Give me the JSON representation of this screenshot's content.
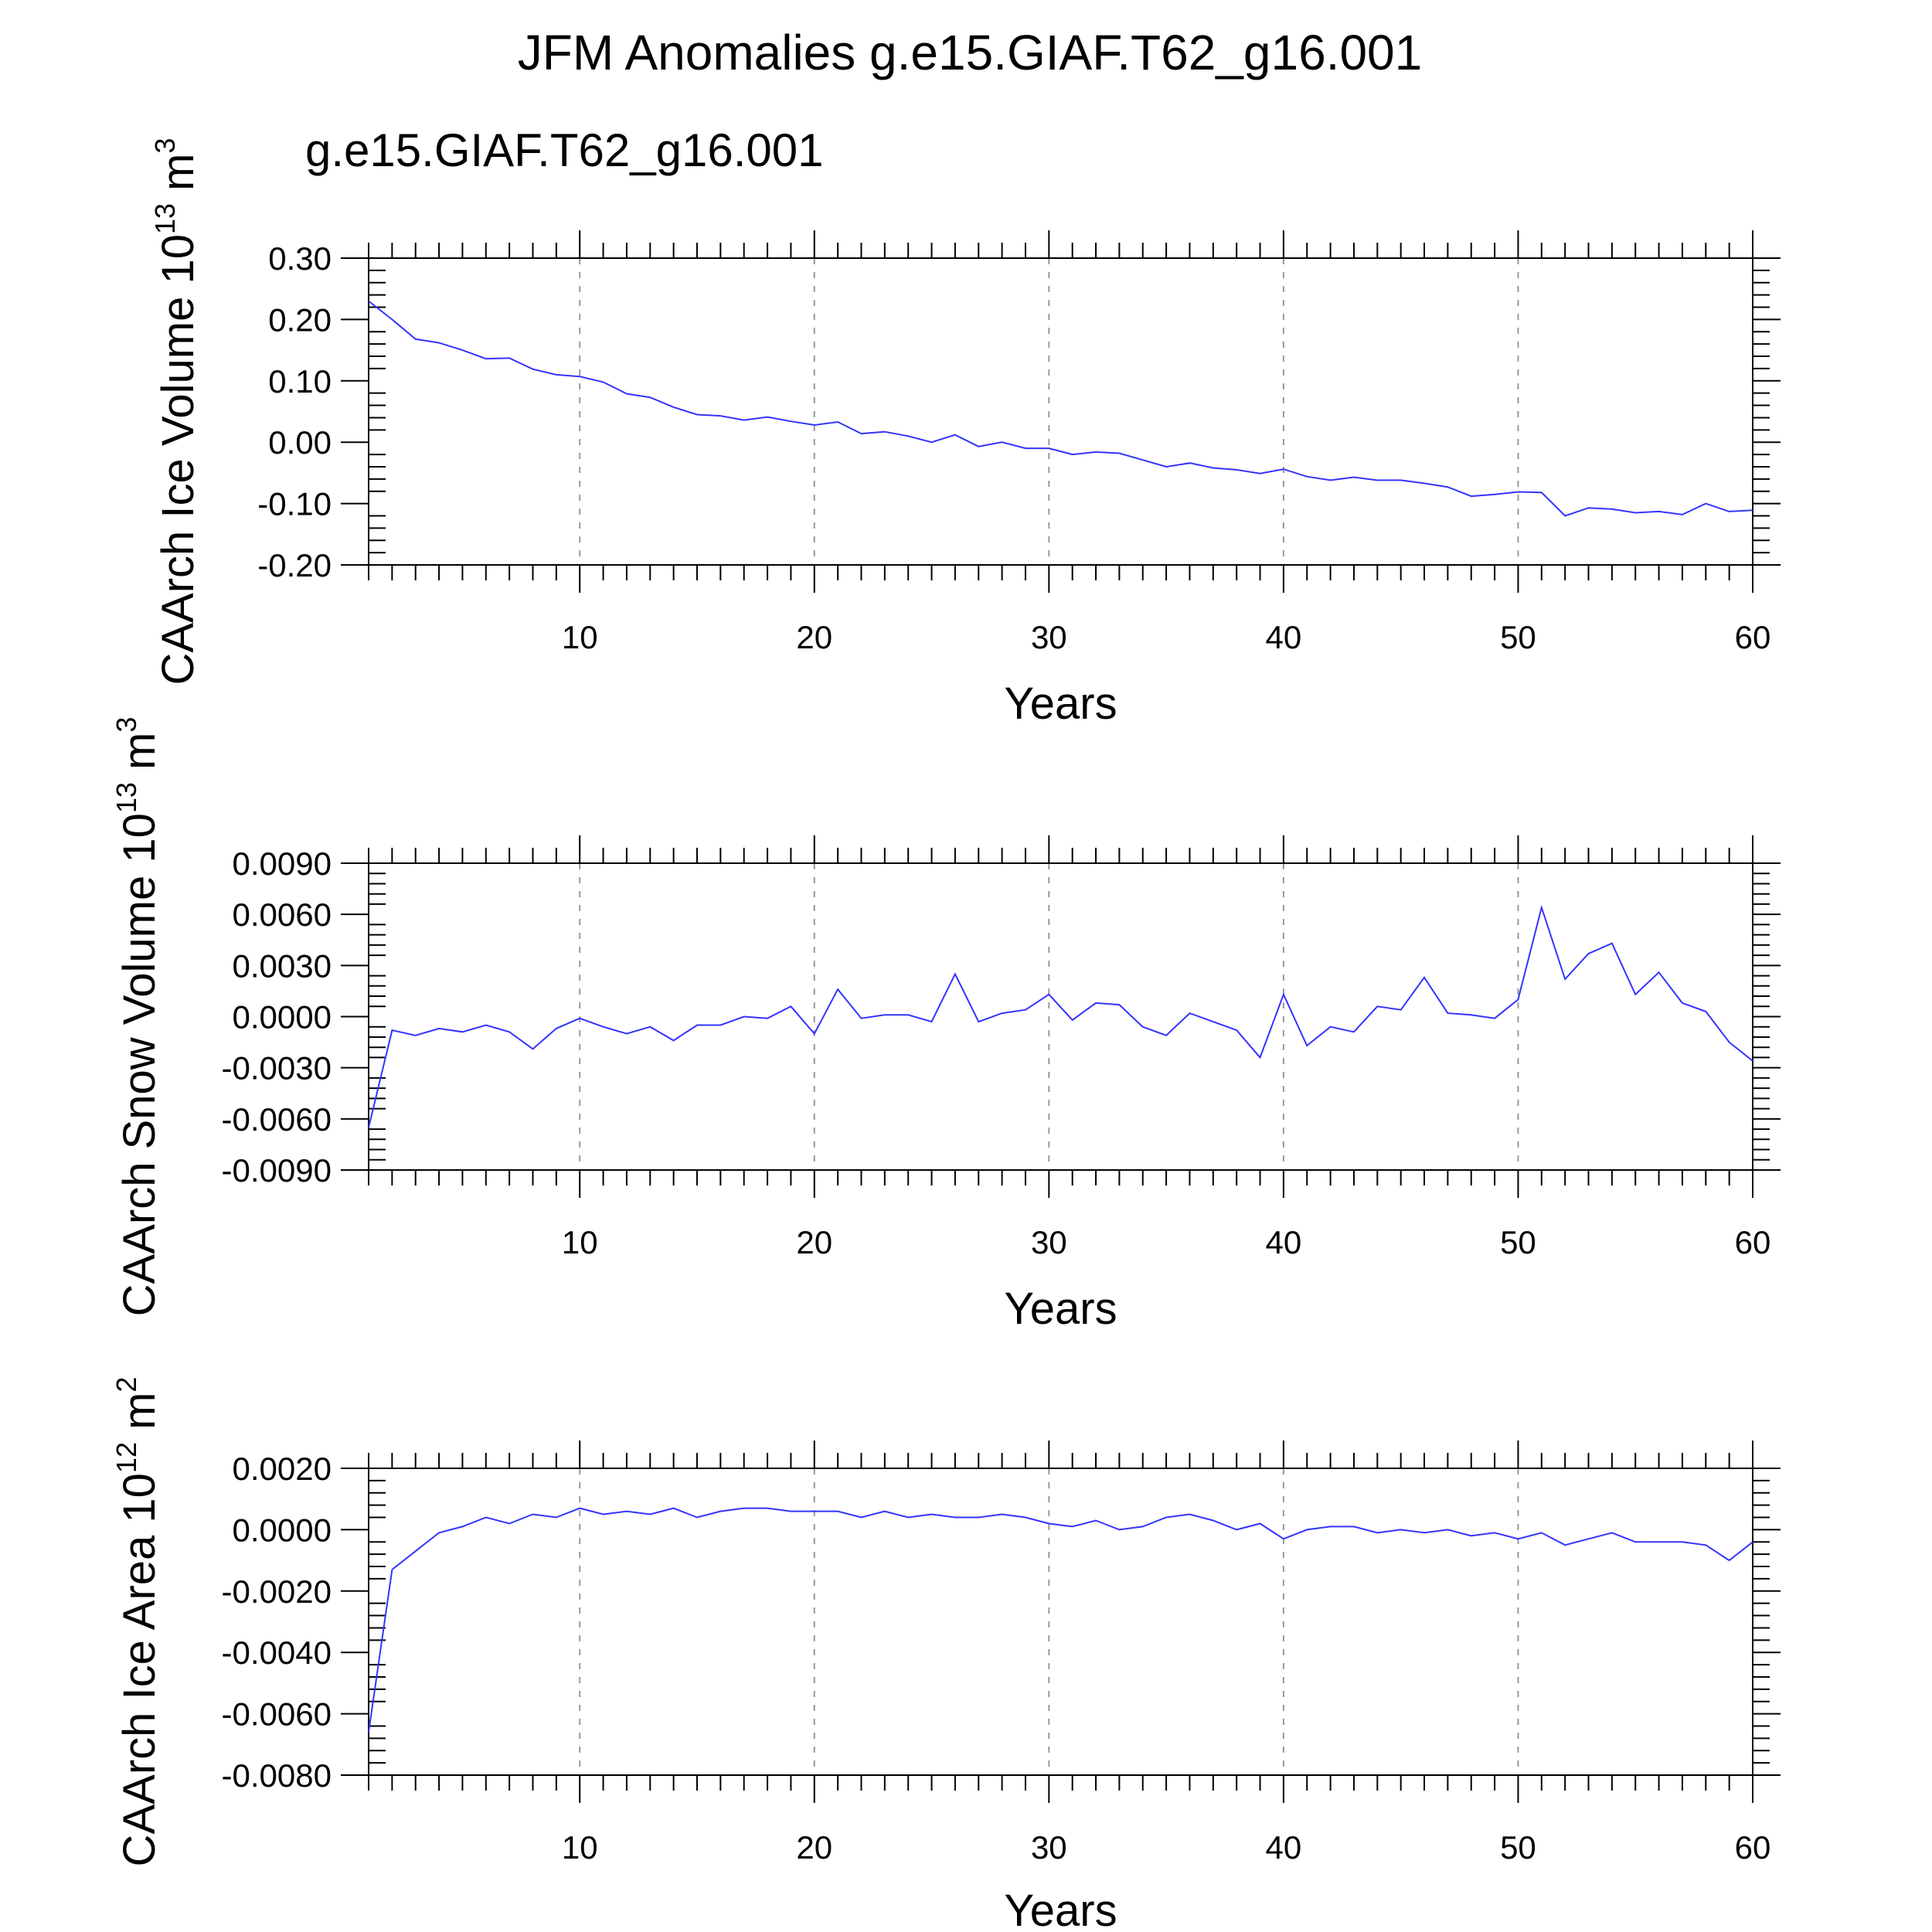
{
  "title": "JFM Anomalies g.e15.GIAF.T62_g16.001",
  "subtitle": "g.e15.GIAF.T62_g16.001",
  "colors": {
    "series": "#3333ff",
    "subtitle": "#1a1aff",
    "axis": "#000000",
    "grid": "#999999"
  },
  "chart_data": [
    {
      "type": "line",
      "ylabel": {
        "text": "CAArch Ice Volume 10",
        "sup": "13",
        "unit": " m",
        "unit_sup": "3"
      },
      "xlabel": "Years",
      "xlim": [
        1,
        60
      ],
      "ylim": [
        -0.2,
        0.3
      ],
      "xticks": [
        "10",
        "20",
        "30",
        "40",
        "50",
        "60"
      ],
      "yticks": [
        "0.30",
        "0.20",
        "0.10",
        "0.00",
        "-0.10",
        "-0.20"
      ],
      "x_start": 1,
      "series": [
        {
          "values": [
            0.23,
            0.2,
            0.168,
            0.162,
            0.15,
            0.136,
            0.137,
            0.119,
            0.11,
            0.107,
            0.098,
            0.079,
            0.073,
            0.057,
            0.045,
            0.043,
            0.036,
            0.041,
            0.034,
            0.028,
            0.033,
            0.014,
            0.017,
            0.01,
            0.0,
            0.012,
            -0.007,
            0.0,
            -0.01,
            -0.01,
            -0.02,
            -0.016,
            -0.018,
            -0.029,
            -0.04,
            -0.034,
            -0.042,
            -0.045,
            -0.051,
            -0.044,
            -0.056,
            -0.062,
            -0.057,
            -0.062,
            -0.062,
            -0.067,
            -0.073,
            -0.088,
            -0.085,
            -0.081,
            -0.082,
            -0.12,
            -0.107,
            -0.109,
            -0.115,
            -0.113,
            -0.118,
            -0.1,
            -0.113,
            -0.111
          ]
        }
      ]
    },
    {
      "type": "line",
      "ylabel": {
        "text": "CAArch Snow Volume 10",
        "sup": "13",
        "unit": " m",
        "unit_sup": "3"
      },
      "xlabel": "Years",
      "xlim": [
        1,
        60
      ],
      "ylim": [
        -0.009,
        0.009
      ],
      "xticks": [
        "10",
        "20",
        "30",
        "40",
        "50",
        "60"
      ],
      "yticks": [
        "0.0090",
        "0.0060",
        "0.0030",
        "0.0000",
        "-0.0030",
        "-0.0060",
        "-0.0090"
      ],
      "x_start": 1,
      "series": [
        {
          "values": [
            -0.0065,
            -0.0008,
            -0.0011,
            -0.0007,
            -0.0009,
            -0.0005,
            -0.0009,
            -0.0019,
            -0.0007,
            -0.0001,
            -0.0006,
            -0.001,
            -0.0006,
            -0.0014,
            -0.0005,
            -0.0005,
            0.0,
            -0.0001,
            0.0006,
            -0.001,
            0.0016,
            -0.0001,
            0.0001,
            0.0001,
            -0.0003,
            0.0025,
            -0.0003,
            0.0002,
            0.0004,
            0.0013,
            -0.0002,
            0.0008,
            0.0007,
            -0.0006,
            -0.0011,
            0.0002,
            -0.0003,
            -0.0008,
            -0.0024,
            0.0013,
            -0.0017,
            -0.0006,
            -0.0009,
            0.0006,
            0.0004,
            0.0023,
            0.0002,
            0.0001,
            -0.0001,
            0.001,
            0.0064,
            0.0022,
            0.0037,
            0.0043,
            0.0013,
            0.0026,
            0.0008,
            0.0003,
            -0.0015,
            -0.0026
          ]
        }
      ]
    },
    {
      "type": "line",
      "ylabel": {
        "text": "CAArch Ice Area 10",
        "sup": "12",
        "unit": " m",
        "unit_sup": "2"
      },
      "xlabel": "Years",
      "xlim": [
        1,
        60
      ],
      "ylim": [
        -0.008,
        0.002
      ],
      "xticks": [
        "10",
        "20",
        "30",
        "40",
        "50",
        "60"
      ],
      "yticks": [
        "0.0020",
        "0.0000",
        "-0.0020",
        "-0.0040",
        "-0.0060",
        "-0.0080"
      ],
      "x_start": 1,
      "series": [
        {
          "values": [
            -0.0066,
            -0.0013,
            -0.0007,
            -0.0001,
            0.0001,
            0.0004,
            0.0002,
            0.0005,
            0.0004,
            0.0007,
            0.0005,
            0.0006,
            0.0005,
            0.0007,
            0.0004,
            0.0006,
            0.0007,
            0.0007,
            0.0006,
            0.0006,
            0.0006,
            0.0004,
            0.0006,
            0.0004,
            0.0005,
            0.0004,
            0.0004,
            0.0005,
            0.0004,
            0.0002,
            0.0001,
            0.0003,
            0.0,
            0.0001,
            0.0004,
            0.0005,
            0.0003,
            0.0,
            0.0002,
            -0.0003,
            0.0,
            0.0001,
            0.0001,
            -0.0001,
            0.0,
            -0.0001,
            0.0,
            -0.0002,
            -0.0001,
            -0.0003,
            -0.0001,
            -0.0005,
            -0.0003,
            -0.0001,
            -0.0004,
            -0.0004,
            -0.0004,
            -0.0005,
            -0.001,
            -0.0004
          ]
        }
      ]
    }
  ]
}
